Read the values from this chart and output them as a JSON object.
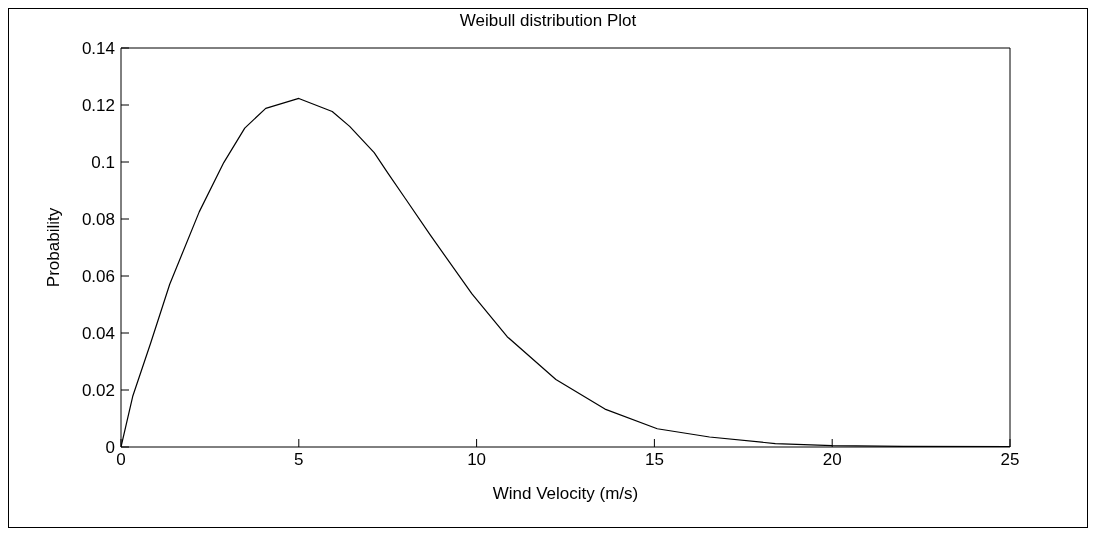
{
  "chart_data": {
    "type": "line",
    "title": "Weibull distribution Plot",
    "xlabel": "Wind Velocity (m/s)",
    "ylabel": "Probability",
    "x": [
      0,
      0.33,
      0.83,
      1.37,
      2.2,
      2.89,
      3.48,
      4.07,
      5,
      5.94,
      6.43,
      7.12,
      7.51,
      8,
      8.69,
      9.87,
      10.86,
      12.23,
      13.61,
      15.08,
      16.55,
      18.4,
      20,
      22,
      25
    ],
    "series": [
      {
        "color": "#000000",
        "values": [
          0,
          0.0178,
          0.0363,
          0.0571,
          0.0825,
          0.0998,
          0.1119,
          0.1188,
          0.1223,
          0.1177,
          0.1125,
          0.1033,
          0.096,
          0.0871,
          0.0745,
          0.0537,
          0.0387,
          0.0237,
          0.0133,
          0.0064,
          0.0035,
          0.0012,
          0.0005,
          0.0002,
          0.0001
        ]
      }
    ],
    "xlim": [
      0,
      25
    ],
    "xticks": [
      0,
      5,
      10,
      15,
      20,
      25
    ],
    "ylim": [
      0,
      0.14
    ],
    "yticks": [
      0,
      0.02,
      0.04,
      0.06,
      0.08,
      0.1,
      0.12,
      0.14
    ],
    "grid": false,
    "legend": false,
    "marker": "none",
    "line_style": "solid"
  }
}
